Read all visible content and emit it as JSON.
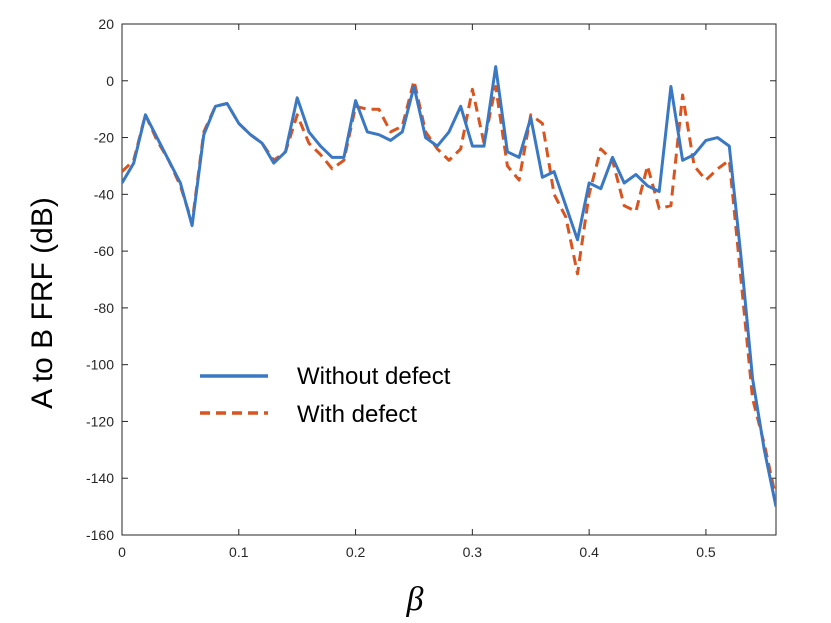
{
  "chart_data": {
    "type": "line",
    "title": "",
    "xlabel": "β",
    "ylabel": "A to B FRF (dB)",
    "xlim": [
      0,
      0.56
    ],
    "ylim": [
      -160,
      20
    ],
    "xticks": [
      0,
      0.1,
      0.2,
      0.3,
      0.4,
      0.5
    ],
    "xtick_labels": [
      "0",
      "0.1",
      "0.2",
      "0.3",
      "0.4",
      "0.5"
    ],
    "yticks": [
      20,
      0,
      -20,
      -40,
      -60,
      -80,
      -100,
      -120,
      -140,
      -160
    ],
    "ytick_labels": [
      "20",
      "0",
      "-20",
      "-40",
      "-60",
      "-80",
      "-100",
      "-120",
      "-140",
      "-160"
    ],
    "grid": false,
    "legend_position": "center-left",
    "series": [
      {
        "name": "Without defect",
        "color": "#3A78C4",
        "dash": "solid",
        "x": [
          0,
          0.01,
          0.02,
          0.03,
          0.04,
          0.05,
          0.06,
          0.07,
          0.08,
          0.09,
          0.1,
          0.11,
          0.12,
          0.13,
          0.14,
          0.15,
          0.16,
          0.17,
          0.18,
          0.19,
          0.2,
          0.21,
          0.22,
          0.23,
          0.24,
          0.25,
          0.26,
          0.27,
          0.28,
          0.29,
          0.3,
          0.31,
          0.32,
          0.33,
          0.34,
          0.35,
          0.36,
          0.37,
          0.38,
          0.39,
          0.4,
          0.41,
          0.42,
          0.43,
          0.44,
          0.45,
          0.46,
          0.47,
          0.48,
          0.49,
          0.5,
          0.51,
          0.52,
          0.53,
          0.54,
          0.55,
          0.56
        ],
        "values": [
          -36,
          -29,
          -12,
          -20,
          -28,
          -36,
          -51,
          -19,
          -9,
          -8,
          -15,
          -19,
          -22,
          -29,
          -25,
          -6,
          -18,
          -23,
          -27,
          -27,
          -7,
          -18,
          -19,
          -21,
          -18,
          -2,
          -20,
          -23,
          -18,
          -9,
          -23,
          -23,
          5,
          -25,
          -27,
          -13,
          -34,
          -32,
          -44,
          -56,
          -36,
          -38,
          -27,
          -36,
          -33,
          -37,
          -39,
          -2,
          -28,
          -26,
          -21,
          -20,
          -23,
          -62,
          -105,
          -130,
          -150
        ]
      },
      {
        "name": "With defect",
        "color": "#D9541E",
        "dash": "dashed",
        "x": [
          0,
          0.01,
          0.02,
          0.03,
          0.04,
          0.05,
          0.06,
          0.07,
          0.08,
          0.09,
          0.1,
          0.11,
          0.12,
          0.13,
          0.14,
          0.15,
          0.16,
          0.17,
          0.18,
          0.19,
          0.2,
          0.21,
          0.22,
          0.23,
          0.24,
          0.25,
          0.26,
          0.27,
          0.28,
          0.29,
          0.3,
          0.31,
          0.32,
          0.33,
          0.34,
          0.35,
          0.36,
          0.37,
          0.38,
          0.39,
          0.4,
          0.41,
          0.42,
          0.43,
          0.44,
          0.45,
          0.46,
          0.47,
          0.48,
          0.49,
          0.5,
          0.51,
          0.52,
          0.53,
          0.54,
          0.55,
          0.56
        ],
        "values": [
          -32,
          -28,
          -12,
          -21,
          -28,
          -37,
          -50,
          -18,
          -9,
          -8,
          -15,
          -19,
          -22,
          -28,
          -25,
          -12,
          -22,
          -26,
          -31,
          -28,
          -9,
          -10,
          -10,
          -18,
          -16,
          0,
          -18,
          -24,
          -28,
          -24,
          -3,
          -22,
          -2,
          -30,
          -35,
          -12,
          -15,
          -40,
          -48,
          -68,
          -40,
          -24,
          -28,
          -44,
          -46,
          -30,
          -45,
          -44,
          -5,
          -30,
          -35,
          -31,
          -28,
          -70,
          -112,
          -128,
          -147
        ]
      }
    ]
  }
}
